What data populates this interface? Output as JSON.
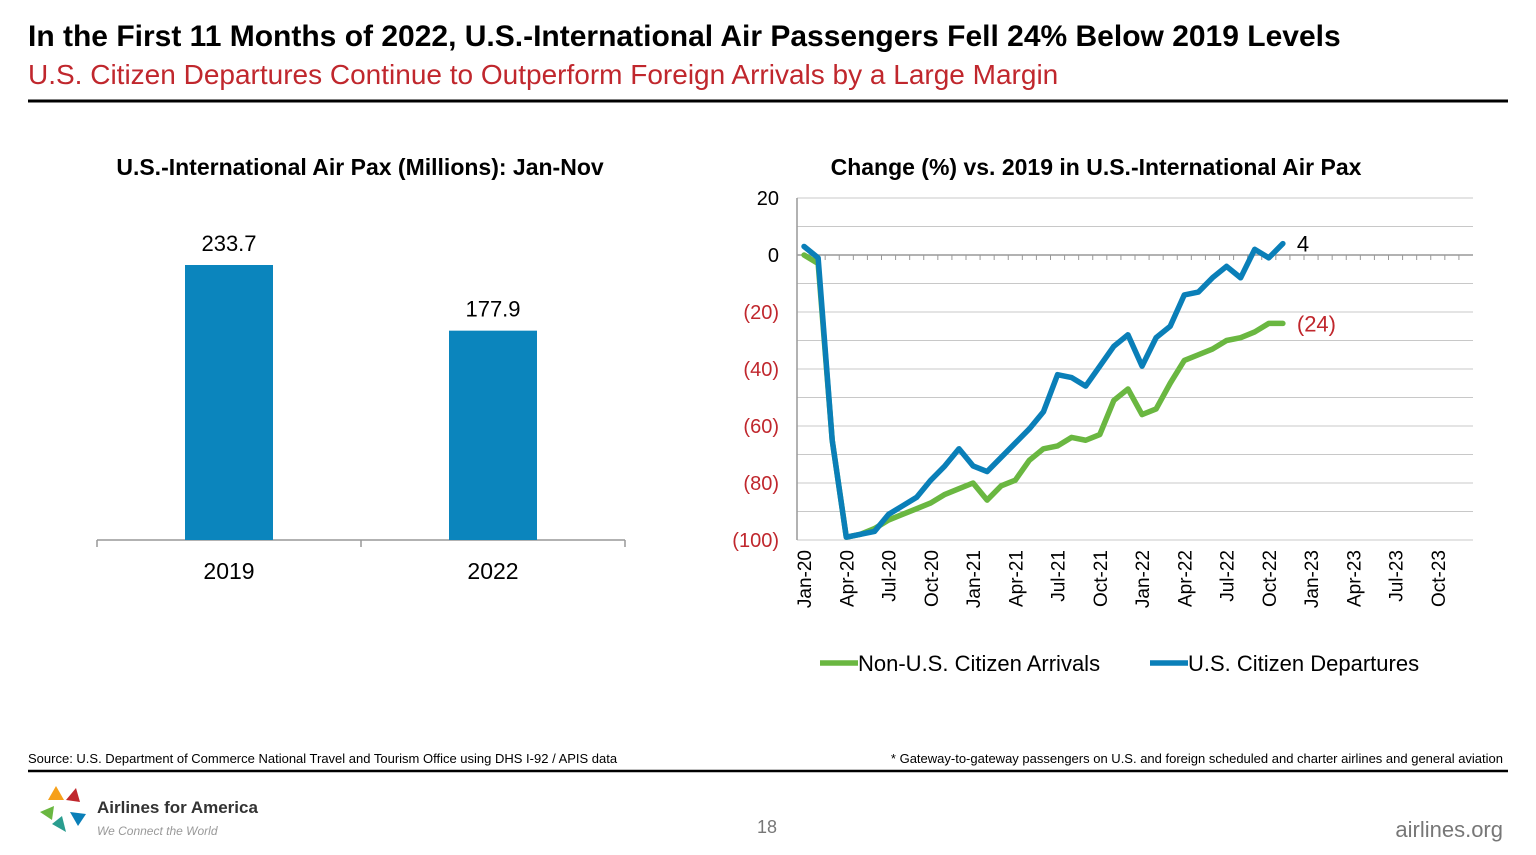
{
  "header": {
    "title": "In the First 11 Months of 2022, U.S.-International Air Passengers Fell 24% Below 2019 Levels",
    "subtitle": "U.S. Citizen Departures Continue to Outperform Foreign Arrivals by a Large Margin"
  },
  "chart_data": [
    {
      "type": "bar",
      "title": "U.S.-International Air Pax (Millions): Jan-Nov",
      "categories": [
        "2019",
        "2022"
      ],
      "values": [
        233.7,
        177.9
      ],
      "color": "#0b85bd"
    },
    {
      "type": "line",
      "title": "Change (%) vs. 2019 in U.S.-International Air Pax",
      "categories": [
        "Jan-20",
        null,
        null,
        "Apr-20",
        null,
        null,
        "Jul-20",
        null,
        null,
        "Oct-20",
        null,
        null,
        "Jan-21",
        null,
        null,
        "Apr-21",
        null,
        null,
        "Jul-21",
        null,
        null,
        "Oct-21",
        null,
        null,
        "Jan-22",
        null,
        null,
        "Apr-22",
        null,
        null,
        "Jul-22",
        null,
        null,
        "Oct-22",
        null,
        null,
        "Jan-23",
        null,
        null,
        "Apr-23",
        null,
        null,
        "Jul-23",
        null,
        null,
        "Oct-23",
        null,
        null
      ],
      "series": [
        {
          "name": "Non-U.S. Citizen Arrivals",
          "color": "#6ab741",
          "values": [
            0,
            -3,
            -65,
            -99,
            -98,
            -96,
            -93,
            -91,
            -89,
            -87,
            -84,
            -82,
            -80,
            -86,
            -81,
            -79,
            -72,
            -68,
            -67,
            -64,
            -65,
            -63,
            -51,
            -47,
            -56,
            -54,
            -45,
            -37,
            -35,
            -33,
            -30,
            -29,
            -27,
            -24,
            -24,
            null,
            null,
            null,
            null,
            null,
            null,
            null,
            null,
            null,
            null,
            null,
            null,
            null
          ],
          "value_labels": [
            null,
            null,
            null,
            null,
            null,
            null,
            null,
            null,
            null,
            null,
            null,
            null,
            null,
            null,
            null,
            null,
            null,
            null,
            null,
            null,
            null,
            null,
            null,
            null,
            null,
            null,
            null,
            null,
            null,
            null,
            null,
            null,
            null,
            null,
            "(24)",
            null,
            null,
            null,
            null,
            null,
            null,
            null,
            null,
            null,
            null,
            null,
            null,
            null
          ]
        },
        {
          "name": "U.S. Citizen Departures",
          "color": "#0a7fb8",
          "values": [
            3,
            -1,
            -65,
            -99,
            -98,
            -97,
            -91,
            -88,
            -85,
            -79,
            -74,
            -68,
            -74,
            -76,
            -71,
            -66,
            -61,
            -55,
            -42,
            -43,
            -46,
            -39,
            -32,
            -28,
            -39,
            -29,
            -25,
            -14,
            -13,
            -8,
            -4,
            -8,
            2,
            -1,
            4,
            null,
            null,
            null,
            null,
            null,
            null,
            null,
            null,
            null,
            null,
            null,
            null,
            null
          ],
          "value_labels": [
            null,
            null,
            null,
            null,
            null,
            null,
            null,
            null,
            null,
            null,
            null,
            null,
            null,
            null,
            null,
            null,
            null,
            null,
            null,
            null,
            null,
            null,
            null,
            null,
            null,
            null,
            null,
            null,
            null,
            null,
            null,
            null,
            null,
            null,
            "4",
            null,
            null,
            null,
            null,
            null,
            null,
            null,
            null,
            null,
            null,
            null,
            null,
            null
          ]
        }
      ],
      "ylim": [
        -100,
        20
      ],
      "yticks": [
        20,
        0,
        {
          "value": -20,
          "label": "(20)"
        },
        {
          "value": -40,
          "label": "(40)"
        },
        {
          "value": -60,
          "label": "(60)"
        },
        {
          "value": -80,
          "label": "(80)"
        },
        {
          "value": -100,
          "label": "(100)"
        }
      ],
      "y_minor_ticks": [
        10,
        -10,
        -30,
        -50,
        -70,
        -90
      ],
      "grid": true,
      "legend": "bottom"
    }
  ],
  "footer": {
    "source": "Source: U.S. Department of Commerce National Travel and Tourism Office using DHS I-92 / APIS data",
    "note": "* Gateway-to-gateway passengers on U.S. and foreign scheduled and charter airlines and general aviation",
    "page": "18",
    "logo": "Airlines for America",
    "tagline": "We Connect the World",
    "url": "airlines.org"
  }
}
